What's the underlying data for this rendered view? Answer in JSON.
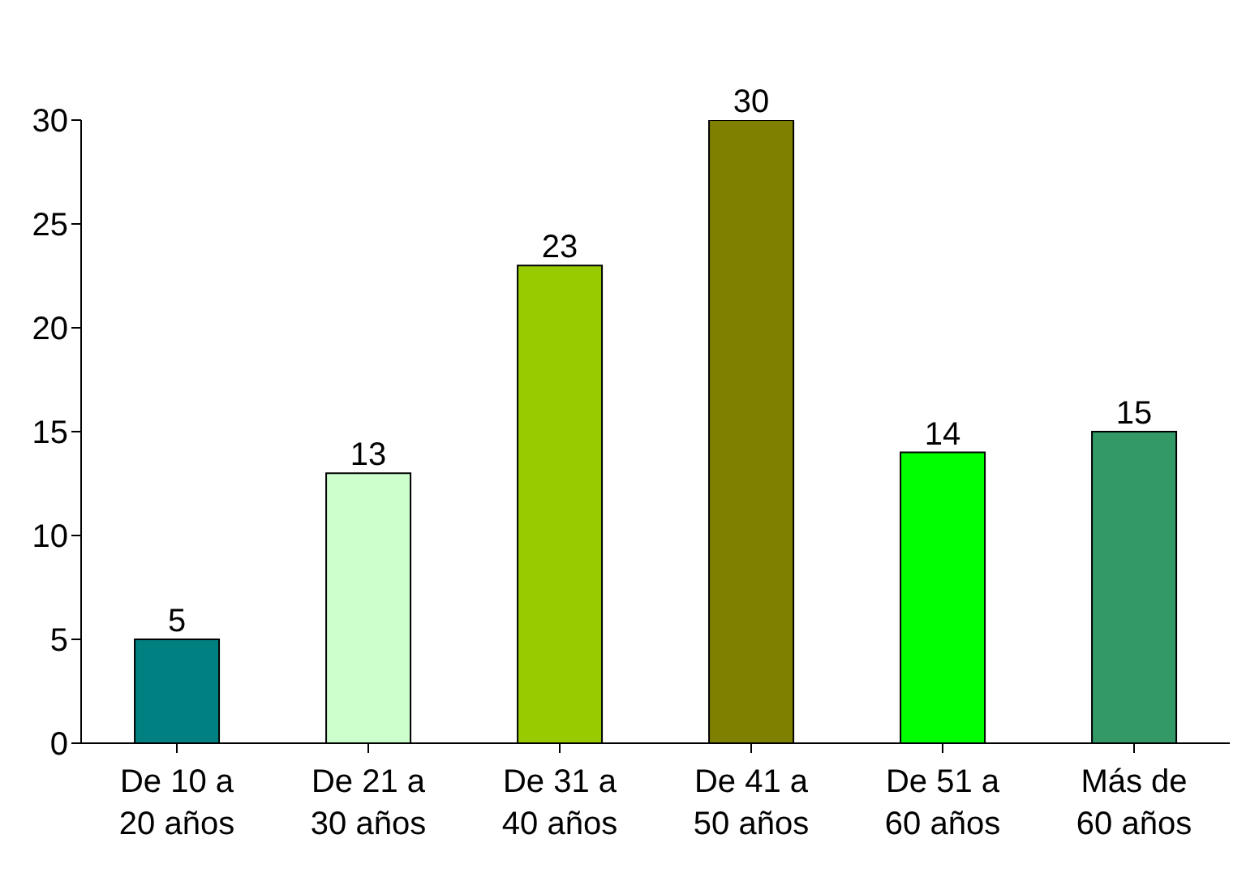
{
  "chart_data": {
    "type": "bar",
    "categories": [
      "De 10 a 20 años",
      "De 21 a 30 años",
      "De 31 a 40 años",
      "De 41 a 50 años",
      "De 51 a 60 años",
      "Más de 60 años"
    ],
    "values": [
      5,
      13,
      23,
      30,
      14,
      15
    ],
    "colors": [
      "#008080",
      "#ccffcc",
      "#99cc00",
      "#808000",
      "#00ff00",
      "#339966"
    ],
    "ylim": [
      0,
      30
    ],
    "yticks": [
      0,
      5,
      10,
      15,
      20,
      25,
      30
    ],
    "data_labels": true,
    "grid": false,
    "legend": false
  }
}
